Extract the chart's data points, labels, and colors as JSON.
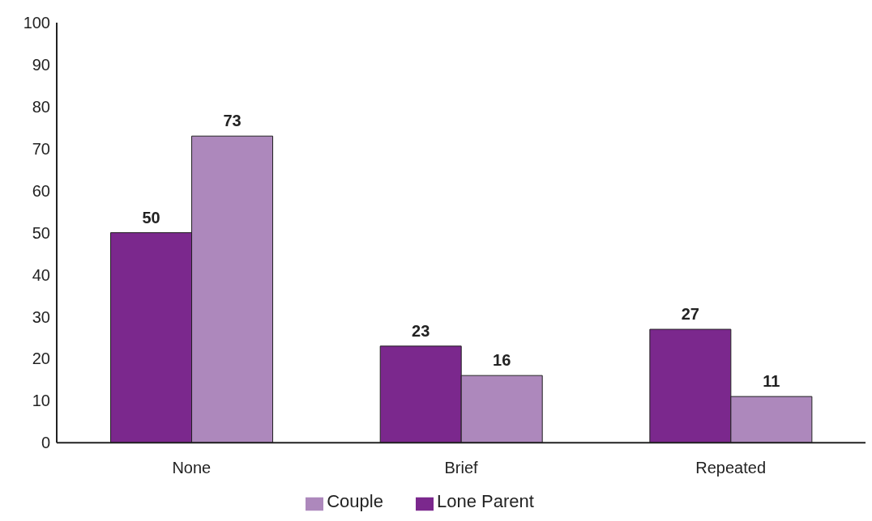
{
  "chart_data": {
    "type": "bar",
    "categories": [
      "None",
      "Brief",
      "Repeated"
    ],
    "series": [
      {
        "name": "Lone Parent",
        "color": "#7b288d",
        "values": [
          50,
          23,
          27
        ]
      },
      {
        "name": "Couple",
        "color": "#ad88bc",
        "values": [
          73,
          16,
          11
        ]
      }
    ],
    "ylim": [
      0,
      100
    ],
    "yticks": [
      0,
      10,
      20,
      30,
      40,
      50,
      60,
      70,
      80,
      90,
      100
    ],
    "grid": false,
    "legend": "bottom",
    "data_labels": true
  }
}
